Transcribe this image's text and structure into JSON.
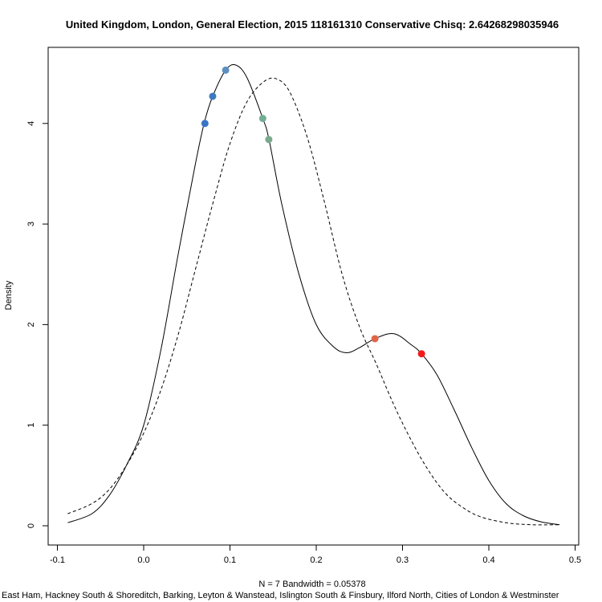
{
  "chart_data": {
    "type": "line",
    "title": "United Kingdom, London, General Election, 2015 118161310 Conservative Chisq: 2.64268298035946",
    "xlabel": "N = 7   Bandwidth = 0.05378",
    "ylabel": "Density",
    "subtitle": "East Ham, Hackney South & Shoreditch, Barking, Leyton & Wanstead, Islington South & Finsbury, Ilford North, Cities of London & Westminster",
    "xlim": [
      -0.1,
      0.5
    ],
    "ylim": [
      0,
      4.6
    ],
    "x_ticks": [
      "-0.1",
      "0.0",
      "0.1",
      "0.2",
      "0.3",
      "0.4",
      "0.5"
    ],
    "y_ticks": [
      "0",
      "1",
      "2",
      "3",
      "4"
    ],
    "grid": false,
    "series": [
      {
        "style": "solid",
        "x": [
          -0.088,
          -0.06,
          -0.04,
          -0.02,
          0.0,
          0.02,
          0.04,
          0.06,
          0.07,
          0.08,
          0.095,
          0.107,
          0.12,
          0.138,
          0.145,
          0.16,
          0.18,
          0.2,
          0.22,
          0.235,
          0.25,
          0.268,
          0.29,
          0.31,
          0.322,
          0.34,
          0.36,
          0.38,
          0.4,
          0.42,
          0.44,
          0.46,
          0.482
        ],
        "y": [
          0.03,
          0.12,
          0.3,
          0.6,
          1.0,
          1.75,
          2.7,
          3.6,
          4.0,
          4.27,
          4.53,
          4.58,
          4.45,
          4.05,
          3.85,
          3.2,
          2.5,
          2.0,
          1.78,
          1.72,
          1.77,
          1.86,
          1.91,
          1.8,
          1.71,
          1.5,
          1.15,
          0.78,
          0.45,
          0.22,
          0.1,
          0.04,
          0.01
        ]
      },
      {
        "style": "dashed",
        "x": [
          -0.088,
          -0.06,
          -0.04,
          -0.02,
          0.0,
          0.02,
          0.04,
          0.06,
          0.08,
          0.1,
          0.12,
          0.14,
          0.155,
          0.17,
          0.19,
          0.21,
          0.23,
          0.25,
          0.27,
          0.29,
          0.31,
          0.33,
          0.35,
          0.37,
          0.39,
          0.42,
          0.45,
          0.482
        ],
        "y": [
          0.12,
          0.22,
          0.36,
          0.6,
          0.92,
          1.35,
          1.9,
          2.55,
          3.2,
          3.8,
          4.22,
          4.42,
          4.44,
          4.3,
          3.85,
          3.2,
          2.5,
          1.98,
          1.6,
          1.2,
          0.85,
          0.55,
          0.32,
          0.18,
          0.09,
          0.03,
          0.01,
          0.01
        ]
      }
    ],
    "points": [
      {
        "x": 0.071,
        "y": 4.0,
        "color": "#3a74c5"
      },
      {
        "x": 0.08,
        "y": 4.27,
        "color": "#3f78c0"
      },
      {
        "x": 0.095,
        "y": 4.53,
        "color": "#5d8fc0"
      },
      {
        "x": 0.138,
        "y": 4.05,
        "color": "#72ad94"
      },
      {
        "x": 0.145,
        "y": 3.84,
        "color": "#7aaa8e"
      },
      {
        "x": 0.268,
        "y": 1.86,
        "color": "#e06548"
      },
      {
        "x": 0.322,
        "y": 1.71,
        "color": "#f21c1c"
      }
    ]
  }
}
